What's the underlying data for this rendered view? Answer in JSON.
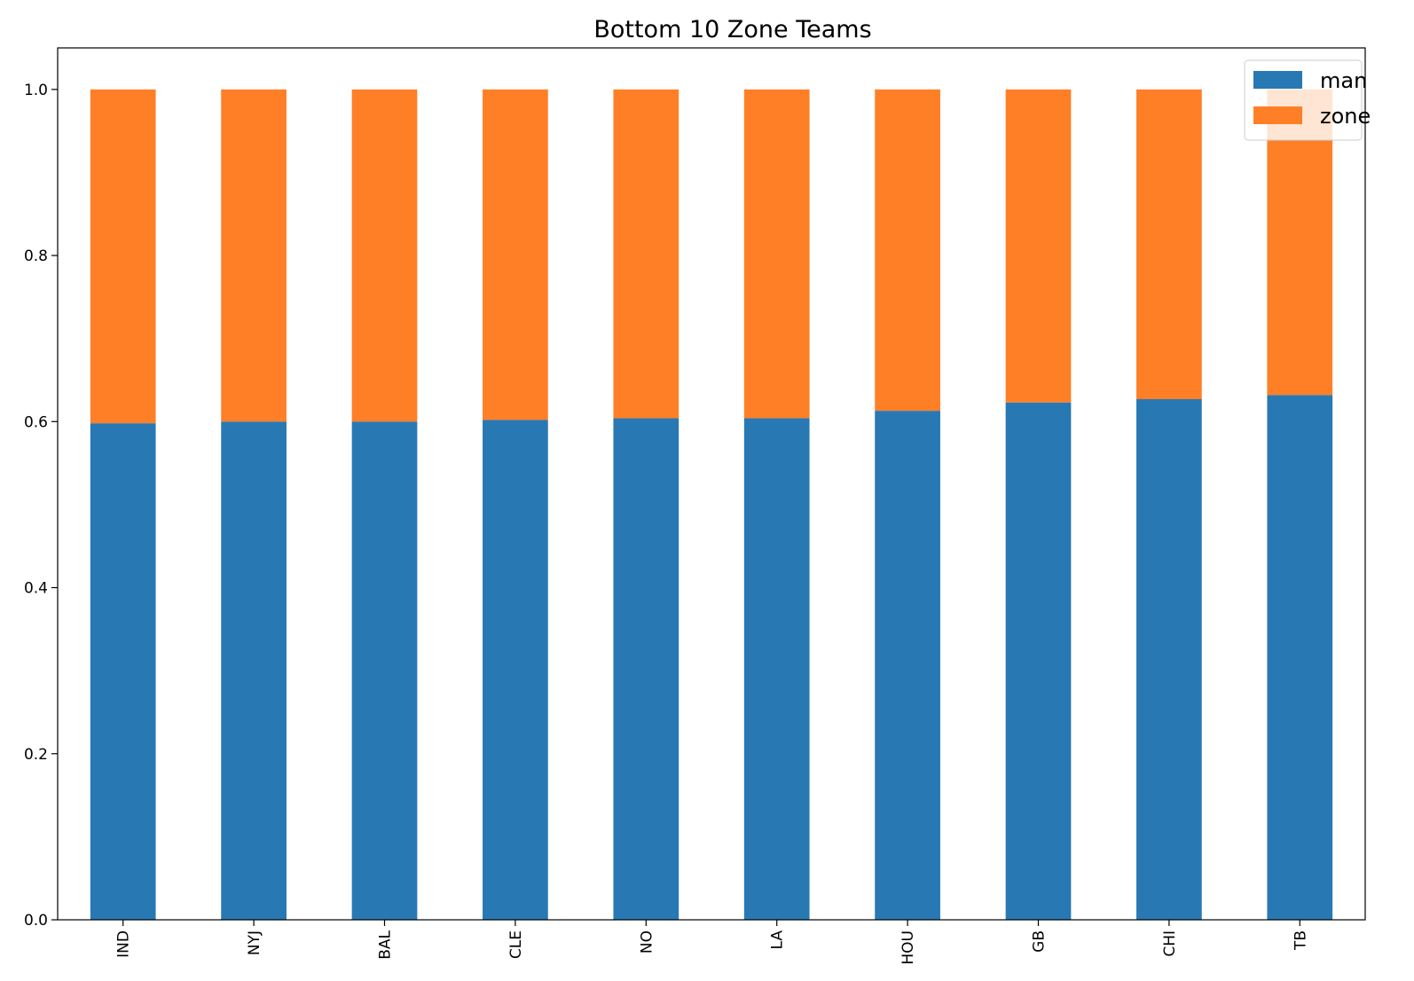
{
  "chart_data": {
    "type": "bar",
    "stacked": true,
    "title": "Bottom 10 Zone Teams",
    "xlabel": "",
    "ylabel": "",
    "categories": [
      "IND",
      "NYJ",
      "BAL",
      "CLE",
      "NO",
      "LA",
      "HOU",
      "GB",
      "CHI",
      "TB"
    ],
    "series": [
      {
        "name": "man",
        "color": "#2878b4",
        "values": [
          0.598,
          0.6,
          0.6,
          0.602,
          0.604,
          0.604,
          0.613,
          0.623,
          0.627,
          0.632
        ]
      },
      {
        "name": "zone",
        "color": "#ff7f27",
        "values": [
          0.402,
          0.4,
          0.4,
          0.398,
          0.396,
          0.396,
          0.387,
          0.377,
          0.373,
          0.368
        ]
      }
    ],
    "ylim": [
      0,
      1.05
    ],
    "yticks": [
      "0.0",
      "0.2",
      "0.4",
      "0.6",
      "0.8",
      "1.0"
    ],
    "grid": false,
    "legend_position": "top-right"
  }
}
